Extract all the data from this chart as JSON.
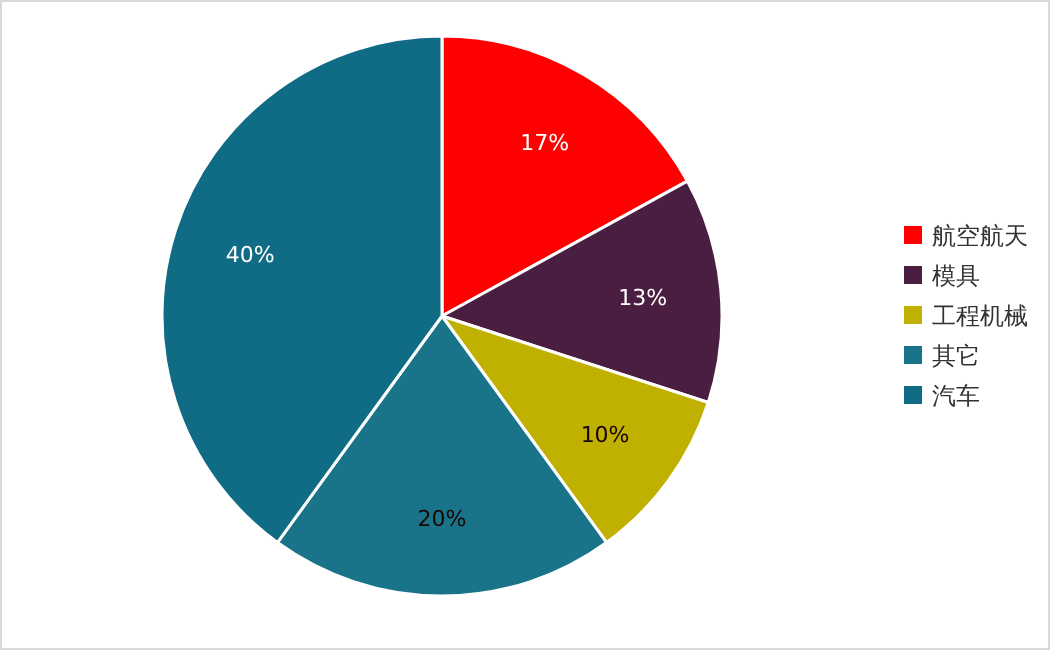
{
  "chart_data": {
    "type": "pie",
    "categories": [
      "航空航天",
      "模具",
      "工程机械",
      "其它",
      "汽车"
    ],
    "values": [
      17,
      13,
      10,
      20,
      40
    ],
    "colors": [
      "#ff0000",
      "#4a1e40",
      "#c0b000",
      "#1a7489",
      "#0f6c84"
    ],
    "value_labels": [
      "17%",
      "13%",
      "10%",
      "20%",
      "40%"
    ],
    "legend": "right"
  }
}
